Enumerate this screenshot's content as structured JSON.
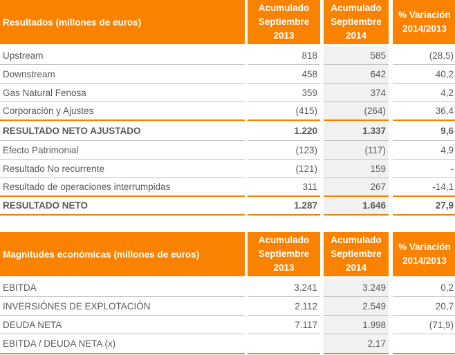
{
  "results": {
    "header": {
      "title": "Resultados (millones de euros)",
      "col1": "Acumulado Septiembre 2013",
      "col2": "Acumulado Septiembre 2014",
      "col3": "% Variación 2014/2013"
    },
    "rows": [
      {
        "label": "Upstream",
        "v2013": "818",
        "v2014": "585",
        "var": "(28,5)"
      },
      {
        "label": "Downstream",
        "v2013": "458",
        "v2014": "642",
        "var": "40,2"
      },
      {
        "label": "Gas Natural Fenosa",
        "v2013": "359",
        "v2014": "374",
        "var": "4,2"
      },
      {
        "label": "Corporación y Ajustes",
        "v2013": "(415)",
        "v2014": "(264)",
        "var": "36,4"
      },
      {
        "label": "RESULTADO NETO AJUSTADO",
        "v2013": "1.220",
        "v2014": "1.337",
        "var": "9,6"
      },
      {
        "label": "Efecto Patrimonial",
        "v2013": "(123)",
        "v2014": "(117)",
        "var": "4,9"
      },
      {
        "label": "Resultado No recurrente",
        "v2013": "(121)",
        "v2014": "159",
        "var": "-"
      },
      {
        "label": "Resultado de operaciones interrumpidas",
        "v2013": "311",
        "v2014": "267",
        "var": "-14,1"
      },
      {
        "label": "RESULTADO NETO",
        "v2013": "1.287",
        "v2014": "1.646",
        "var": "27,9"
      }
    ]
  },
  "magnitudes": {
    "header": {
      "title": "Magnitudes económicas (millones de euros)",
      "col1": "Acumulado Septiembre 2013",
      "col2": "Acumulado Septiembre 2014",
      "col3": "% Variación 2014/2013"
    },
    "rows": [
      {
        "label": "EBITDA",
        "v2013": "3.241",
        "v2014": "3.249",
        "var": "0,2"
      },
      {
        "label": "INVERSIÓNES DE EXPLOTACIÓN",
        "v2013": "2.112",
        "v2014": "2.549",
        "var": "20,7"
      },
      {
        "label": "DEUDA NETA",
        "v2013": "7.117",
        "v2014": "1.998",
        "var": "(71,9)"
      },
      {
        "label": "EBITDA / DEUDA NETA (x)",
        "v2013": "",
        "v2014": "2,17",
        "var": ""
      }
    ]
  }
}
